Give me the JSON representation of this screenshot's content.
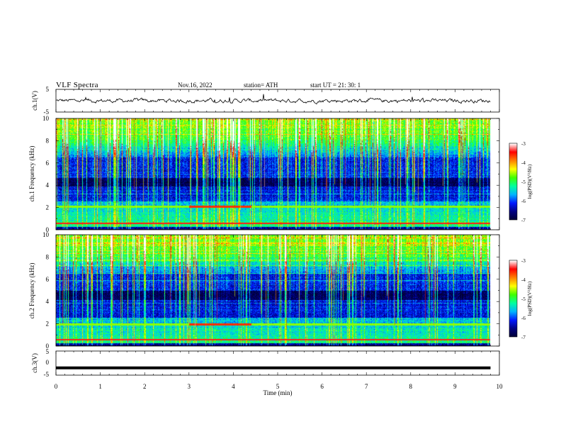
{
  "header": {
    "title": "VLF  Spectra",
    "date": "Nov.16, 2022",
    "station": "station= ATH",
    "start": "start  UT  =   21: 30: 1"
  },
  "colors": {
    "colormap": [
      "#000033",
      "#000080",
      "#0018ff",
      "#00b4ff",
      "#00ffa0",
      "#40ff00",
      "#ffff00",
      "#ff8000",
      "#ff0000",
      "#ffffff"
    ],
    "trace": "#000000"
  },
  "chart_data": [
    {
      "type": "line",
      "ylabel": "ch.1(V)",
      "ylim": [
        -5,
        5
      ],
      "yticks": [
        "5",
        "-5"
      ],
      "xlim": [
        0,
        10
      ],
      "description_values": {
        "baseline": 0,
        "noise_amplitude": 0.6,
        "duration_min": 9.8
      }
    },
    {
      "type": "heatmap",
      "ylabel": "ch.1  Frequency (kHz)",
      "ylim": [
        0,
        10
      ],
      "yticks": [
        "10",
        "8",
        "6",
        "4",
        "2",
        "0"
      ],
      "xlim": [
        0,
        10
      ],
      "duration_min": 9.8,
      "colorbar": {
        "label": "log(PSD)(V²/Hz)",
        "range": [
          -7,
          -3
        ],
        "ticks": [
          "-3",
          "-4",
          "-5",
          "-6",
          "-7"
        ]
      },
      "features": {
        "dark_band_khz": [
          3.9,
          4.7
        ],
        "step_line_khz": 2.1,
        "step_shift_time_min": [
          3.0,
          4.4
        ]
      }
    },
    {
      "type": "heatmap",
      "ylabel": "ch.2  Frequency (kHz)",
      "ylim": [
        0,
        10
      ],
      "yticks": [
        "10",
        "8",
        "6",
        "4",
        "2",
        "0"
      ],
      "xlim": [
        0,
        10
      ],
      "duration_min": 9.8,
      "colorbar": {
        "label": "log(PSD)(V²/Hz)",
        "range": [
          -7,
          -3
        ],
        "ticks": [
          "-3",
          "-4",
          "-5",
          "-6",
          "-7"
        ]
      },
      "features": {
        "dark_band_khz": [
          4.2,
          5.0
        ],
        "step_line_khz": 2.0,
        "step_shift_time_min": [
          3.0,
          4.4
        ]
      }
    },
    {
      "type": "line",
      "ylabel": "ch.3(V)",
      "ylim": [
        -5,
        5
      ],
      "yticks": [
        "5",
        "0",
        "-5"
      ],
      "xlim": [
        0,
        10
      ],
      "xlabel": "Time  (min)",
      "xticks": [
        "0",
        "1",
        "2",
        "3",
        "4",
        "5",
        "6",
        "7",
        "8",
        "9",
        "10"
      ],
      "constant_value": -2,
      "duration_min": 9.8
    }
  ]
}
